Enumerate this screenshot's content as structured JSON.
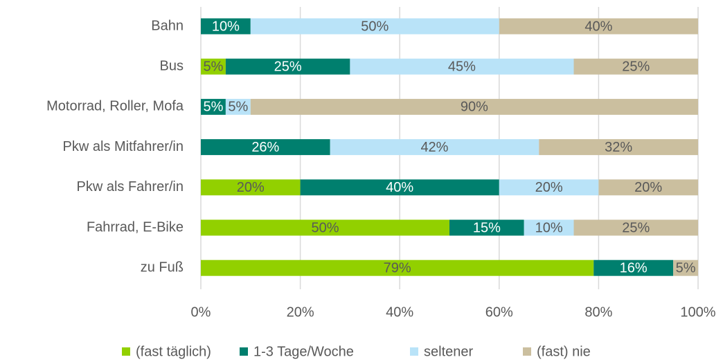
{
  "chart_data": {
    "type": "stacked_barh",
    "categories": [
      "Bahn",
      "Bus",
      "Motorrad, Roller, Mofa",
      "Pkw als Mitfahrer/in",
      "Pkw als Fahrer/in",
      "Fahrrad, E-Bike",
      "zu Fuß"
    ],
    "series": [
      {
        "name": "(fast täglich)",
        "color": "#92d000",
        "values": [
          0,
          5,
          0,
          0,
          20,
          50,
          79
        ],
        "value_labels": [
          null,
          "5%",
          null,
          null,
          "20%",
          "50%",
          "79%"
        ]
      },
      {
        "name": "1-3 Tage/Woche",
        "color": "#007f6e",
        "values": [
          10,
          25,
          5,
          26,
          40,
          15,
          16
        ],
        "value_labels": [
          "10%",
          "25%",
          "5%",
          "26%",
          "40%",
          "15%",
          "16%"
        ]
      },
      {
        "name": "seltener",
        "color": "#b9e3f8",
        "values": [
          50,
          45,
          5,
          42,
          20,
          10,
          0
        ],
        "value_labels": [
          "50%",
          "45%",
          "5%",
          "42%",
          "20%",
          "10%",
          null
        ]
      },
      {
        "name": "(fast) nie",
        "color": "#cbbf9f",
        "values": [
          40,
          25,
          90,
          32,
          20,
          25,
          5
        ],
        "value_labels": [
          "40%",
          "25%",
          "90%",
          "32%",
          "20%",
          "25%",
          "5%"
        ]
      }
    ],
    "xlim": [
      0,
      100
    ],
    "xticks": [
      {
        "value": 0,
        "label": "0%"
      },
      {
        "value": 20,
        "label": "20%"
      },
      {
        "value": 40,
        "label": "40%"
      },
      {
        "value": 60,
        "label": "60%"
      },
      {
        "value": 80,
        "label": "80%"
      },
      {
        "value": 100,
        "label": "100%"
      }
    ],
    "grid": true,
    "legend": "bottom"
  }
}
